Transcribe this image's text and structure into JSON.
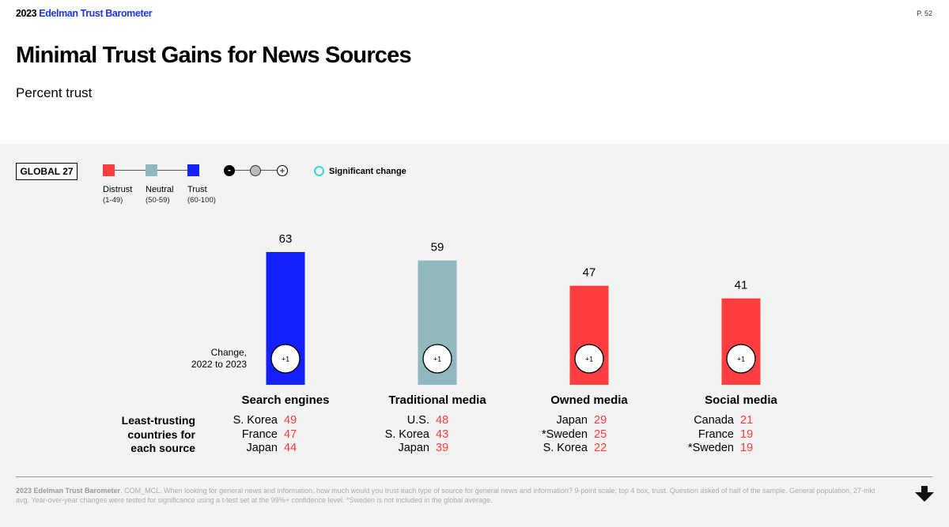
{
  "header": {
    "brand_year": "2023",
    "brand_name": "Edelman Trust Barometer",
    "page": "P. 52"
  },
  "title": "Minimal Trust Gains for News Sources",
  "subtitle": "Percent trust",
  "legend": {
    "group": "GLOBAL 27",
    "items": [
      {
        "label": "Distrust",
        "range": "(1-49)",
        "color": "#ff3f3f"
      },
      {
        "label": "Neutral",
        "range": "(50-59)",
        "color": "#92b8bf"
      },
      {
        "label": "Trust",
        "range": "(60-100)",
        "color": "#1420ff"
      }
    ],
    "change_minus": "-",
    "change_plus": "+",
    "significant": "Significant change"
  },
  "change_label": "Change,\n2022 to 2023",
  "least_trusting_label": "Least-trusting\ncountries for\neach source",
  "chart_data": {
    "type": "bar",
    "categories": [
      "Search engines",
      "Traditional media",
      "Owned media",
      "Social media"
    ],
    "values": [
      63,
      59,
      47,
      41
    ],
    "changes": [
      "+1",
      "+1",
      "+1",
      "+1"
    ],
    "colors": [
      "#1420ff",
      "#92b8bf",
      "#ff3f3f",
      "#ff3f3f"
    ],
    "ylim": [
      0,
      100
    ]
  },
  "least_trusting": [
    [
      {
        "country": "S. Korea",
        "value": "49"
      },
      {
        "country": "France",
        "value": "47"
      },
      {
        "country": "Japan",
        "value": "44"
      }
    ],
    [
      {
        "country": "U.S.",
        "value": "48"
      },
      {
        "country": "S. Korea",
        "value": "43"
      },
      {
        "country": "Japan",
        "value": "39"
      }
    ],
    [
      {
        "country": "Japan",
        "value": "29"
      },
      {
        "country": "*Sweden",
        "value": "25"
      },
      {
        "country": "S. Korea",
        "value": "22"
      }
    ],
    [
      {
        "country": "Canada",
        "value": "21"
      },
      {
        "country": "France",
        "value": "19"
      },
      {
        "country": "*Sweden",
        "value": "19"
      }
    ]
  ],
  "footnote": {
    "bold": "2023 Edelman Trust Barometer",
    "text": ". COM_MCL. When looking for general news and information, how much would you trust each type of source for general news and information? 9-point scale; top 4 box, trust. Question asked of half of the sample. General population, 27-mkt avg. Year-over-year changes were tested for significance using a t-test set at the 99%+ confidence level. *Sweden is not included in the global average."
  }
}
